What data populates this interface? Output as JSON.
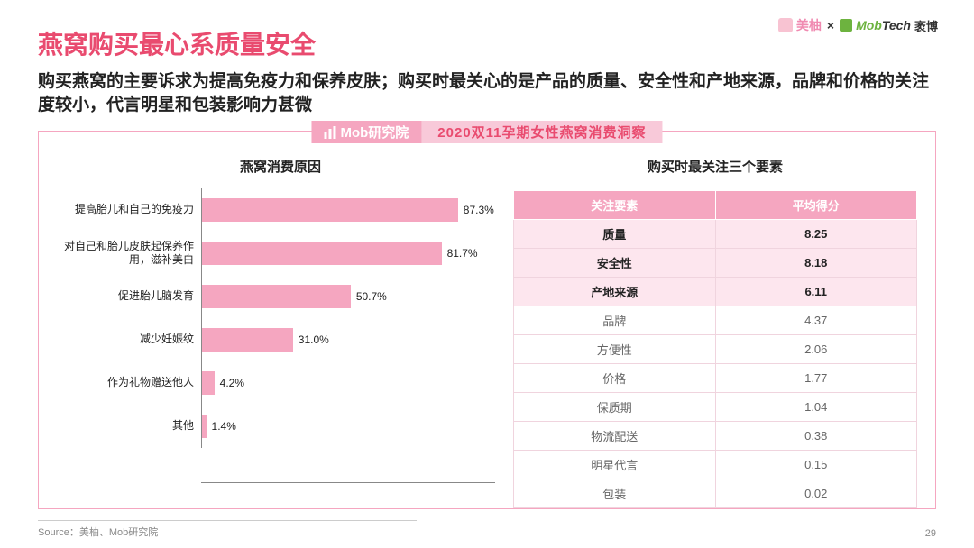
{
  "logos": {
    "meiyou": "美柚",
    "times": "×",
    "mobtech_green": "Mob",
    "mobtech_dark": "Tech",
    "mobtech_cn": "袤博"
  },
  "title": "燕窝购买最心系质量安全",
  "subtitle": "购买燕窝的主要诉求为提高免疫力和保养皮肤；购买时最关心的是产品的质量、安全性和产地来源，品牌和价格的关注度较小，代言明星和包装影响力甚微",
  "ribbon": {
    "label": "Mob研究院",
    "title": "2020双11孕期女性燕窝消费洞察"
  },
  "left_chart": {
    "type": "bar",
    "title": "燕窝消费原因",
    "xmax": 100,
    "bar_color": "#f5a6c0",
    "axis_color": "#888888",
    "text_color": "#222222",
    "items": [
      {
        "label": "提高胎儿和自己的免疫力",
        "value": 87.3,
        "text": "87.3%"
      },
      {
        "label": "对自己和胎儿皮肤起保养作用，滋补美白",
        "value": 81.7,
        "text": "81.7%"
      },
      {
        "label": "促进胎儿脑发育",
        "value": 50.7,
        "text": "50.7%"
      },
      {
        "label": "减少妊娠纹",
        "value": 31.0,
        "text": "31.0%"
      },
      {
        "label": "作为礼物赠送他人",
        "value": 4.2,
        "text": "4.2%"
      },
      {
        "label": "其他",
        "value": 1.4,
        "text": "1.4%"
      }
    ]
  },
  "right_table": {
    "title": "购买时最关注三个要素",
    "header": [
      "关注要素",
      "平均得分"
    ],
    "header_bg": "#f5a6c0",
    "highlight_bg": "#fde6ee",
    "rows": [
      {
        "factor": "质量",
        "score": "8.25",
        "highlight": true
      },
      {
        "factor": "安全性",
        "score": "8.18",
        "highlight": true
      },
      {
        "factor": "产地来源",
        "score": "6.11",
        "highlight": true
      },
      {
        "factor": "品牌",
        "score": "4.37",
        "highlight": false
      },
      {
        "factor": "方便性",
        "score": "2.06",
        "highlight": false
      },
      {
        "factor": "价格",
        "score": "1.77",
        "highlight": false
      },
      {
        "factor": "保质期",
        "score": "1.04",
        "highlight": false
      },
      {
        "factor": "物流配送",
        "score": "0.38",
        "highlight": false
      },
      {
        "factor": "明星代言",
        "score": "0.15",
        "highlight": false
      },
      {
        "factor": "包装",
        "score": "0.02",
        "highlight": false
      }
    ]
  },
  "footer": "Source：美柚、Mob研究院",
  "page_number": "29"
}
